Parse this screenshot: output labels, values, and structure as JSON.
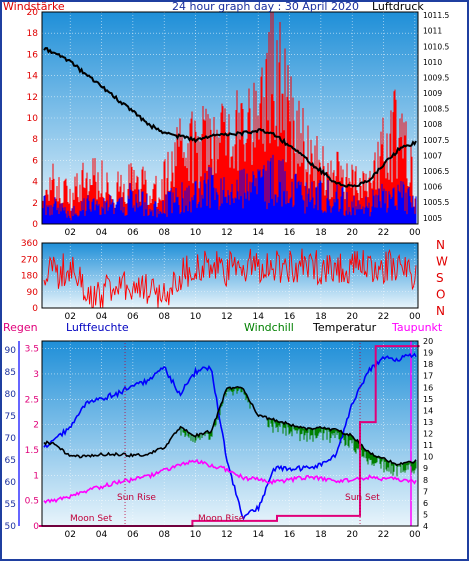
{
  "header": {
    "left_label": "Windstärke",
    "title": "24 hour graph day : 30 April 2020",
    "right_label": "Luftdruck"
  },
  "colors": {
    "frame": "#1f3fa0",
    "wind": "#ff0000",
    "gust": "#0000ff",
    "pressure": "#000000",
    "temperature": "#000000",
    "humidity": "#0000ff",
    "windchill": "#008000",
    "dewpoint": "#ff00ff",
    "rain": "#e0007a",
    "sky_top": "#1f8fd8",
    "sky_bottom": "#e8f4fb"
  },
  "chart_data": [
    {
      "type": "line",
      "panel": "wind_pressure",
      "x_ticks": [
        "02",
        "04",
        "06",
        "08",
        "10",
        "12",
        "14",
        "16",
        "18",
        "20",
        "22",
        "00"
      ],
      "left_axis": {
        "label": "Windstärke",
        "ticks": [
          0,
          2,
          4,
          6,
          8,
          10,
          12,
          14,
          16,
          18,
          20
        ],
        "ylim": [
          0,
          20
        ]
      },
      "right_axis": {
        "label": "Luftdruck",
        "ticks": [
          1005,
          1005.5,
          1006,
          1006.5,
          1007,
          1007.5,
          1008,
          1008.5,
          1009,
          1009.5,
          1010,
          1010.5,
          1011,
          1011.5
        ],
        "ylim": [
          1004.8,
          1011.6
        ]
      },
      "series": [
        {
          "name": "Luftdruck",
          "axis": "right",
          "x": [
            0.5,
            1,
            2,
            3,
            4,
            5,
            6,
            7,
            8,
            9,
            10,
            11,
            12,
            13,
            14,
            15,
            16,
            17,
            18,
            19,
            20,
            21,
            22,
            23,
            24
          ],
          "values": [
            1010.4,
            1010.3,
            1010.0,
            1009.6,
            1009.2,
            1008.8,
            1008.4,
            1008.0,
            1007.7,
            1007.6,
            1007.5,
            1007.6,
            1007.7,
            1007.7,
            1007.8,
            1007.7,
            1007.3,
            1006.9,
            1006.5,
            1006.1,
            1006.0,
            1006.2,
            1006.7,
            1007.2,
            1007.4
          ]
        },
        {
          "name": "Windstärke",
          "axis": "left",
          "x": [
            0.5,
            1,
            2,
            3,
            4,
            5,
            6,
            7,
            8,
            9,
            10,
            11,
            12,
            13,
            14,
            15,
            16,
            17,
            18,
            19,
            20,
            21,
            22,
            23,
            24
          ],
          "values": [
            3,
            5,
            3,
            5,
            5,
            4,
            5,
            4,
            5,
            8,
            9,
            11,
            10,
            12,
            13,
            19,
            12,
            9,
            7,
            6,
            5,
            4,
            9,
            12,
            4
          ]
        },
        {
          "name": "Böen",
          "axis": "left",
          "x": [
            0.5,
            1,
            2,
            3,
            4,
            5,
            6,
            7,
            8,
            9,
            10,
            11,
            12,
            13,
            14,
            15,
            16,
            17,
            18,
            19,
            20,
            21,
            22,
            23,
            24
          ],
          "values": [
            2,
            2,
            1,
            2,
            2,
            2,
            3,
            2,
            2,
            3,
            3,
            4,
            3,
            4,
            4,
            5,
            4,
            3,
            3,
            3,
            2,
            2,
            3,
            4,
            2
          ]
        }
      ]
    },
    {
      "type": "line",
      "panel": "wind_direction",
      "x_ticks": [
        "02",
        "04",
        "06",
        "08",
        "10",
        "12",
        "14",
        "16",
        "18",
        "20",
        "22",
        "00"
      ],
      "left_axis": {
        "ticks": [
          0,
          90,
          180,
          270,
          360
        ],
        "ylim": [
          0,
          360
        ]
      },
      "right_labels": [
        "N",
        "W",
        "S",
        "O",
        "N"
      ],
      "series": [
        {
          "name": "Windrichtung",
          "x": [
            0.5,
            2,
            3,
            4,
            5,
            6,
            7,
            8,
            9,
            10,
            12,
            14,
            16,
            18,
            20,
            22,
            24
          ],
          "values": [
            180,
            220,
            90,
            60,
            180,
            110,
            90,
            60,
            190,
            230,
            210,
            240,
            230,
            230,
            220,
            230,
            200
          ]
        }
      ]
    },
    {
      "type": "line",
      "panel": "weather",
      "header": {
        "rain": "Regen",
        "humidity": "Luftfeuchte",
        "windchill": "Windchill",
        "temperature": "Temperatur",
        "dewpoint": "Taupunkt"
      },
      "x_ticks": [
        "02",
        "04",
        "06",
        "08",
        "10",
        "12",
        "14",
        "16",
        "18",
        "20",
        "22",
        "00"
      ],
      "rain_axis": {
        "ticks": [
          "0",
          "0.5",
          "1",
          "1.5",
          "2",
          "2.5",
          "3",
          "3.5"
        ],
        "ylim": [
          0,
          3.65
        ]
      },
      "humidity_axis": {
        "ticks": [
          50,
          55,
          60,
          65,
          70,
          75,
          80,
          85,
          90
        ],
        "ylim": [
          50,
          92
        ]
      },
      "temperature_axis": {
        "ticks": [
          4,
          5,
          6,
          7,
          8,
          9,
          10,
          11,
          12,
          13,
          14,
          15,
          16,
          17,
          18,
          19,
          20
        ],
        "ylim": [
          4,
          20
        ]
      },
      "annotations": [
        "Moon Set",
        "Sun Rise",
        "Sun Set",
        "Moon Rise"
      ],
      "series": [
        {
          "name": "Temperatur",
          "axis": "temperature",
          "x": [
            0.5,
            1,
            2,
            3,
            4,
            5,
            6,
            7,
            8,
            9,
            10,
            11,
            12,
            13,
            14,
            15,
            16,
            17,
            18,
            19,
            20,
            21,
            22,
            23,
            24
          ],
          "values": [
            11.2,
            11.1,
            10.0,
            10.0,
            10.2,
            10.2,
            10.1,
            10.2,
            10.8,
            12.5,
            11.8,
            12.2,
            15.9,
            16.0,
            13.5,
            13.2,
            12.8,
            12.4,
            12.5,
            12.3,
            11.8,
            10.4,
            9.8,
            9.3,
            9.6
          ]
        },
        {
          "name": "Luftfeuchte",
          "axis": "humidity",
          "x": [
            0.5,
            1,
            2,
            3,
            4,
            5,
            6,
            7,
            8,
            9,
            10,
            11,
            12,
            13,
            14,
            15,
            16,
            17,
            18,
            19,
            20,
            21,
            22,
            23,
            24
          ],
          "values": [
            68,
            70,
            72,
            78,
            79,
            80,
            82,
            83,
            86,
            80,
            85,
            86,
            65,
            52,
            54,
            63,
            63,
            63,
            64,
            66,
            78,
            85,
            88,
            88,
            89
          ]
        },
        {
          "name": "Taupunkt",
          "axis": "temperature",
          "x": [
            0.5,
            1,
            2,
            3,
            4,
            5,
            6,
            7,
            8,
            9,
            10,
            11,
            12,
            13,
            14,
            15,
            16,
            17,
            18,
            19,
            20,
            21,
            22,
            23,
            24
          ],
          "values": [
            6.1,
            6.2,
            6.5,
            7.0,
            7.4,
            7.8,
            8.0,
            8.3,
            8.8,
            9.3,
            9.6,
            9.2,
            8.9,
            8.2,
            8.0,
            7.8,
            8.0,
            8.2,
            8.1,
            7.9,
            8.0,
            8.2,
            8.1,
            8.0,
            7.8
          ]
        },
        {
          "name": "Regen",
          "axis": "rain",
          "x": [
            0,
            9.8,
            9.8,
            15.2,
            15.2,
            20.5,
            20.5,
            21.5,
            21.5,
            24.3
          ],
          "values": [
            0,
            0,
            0.1,
            0.1,
            0.2,
            0.2,
            2.05,
            2.05,
            3.55,
            3.55
          ]
        }
      ]
    }
  ]
}
